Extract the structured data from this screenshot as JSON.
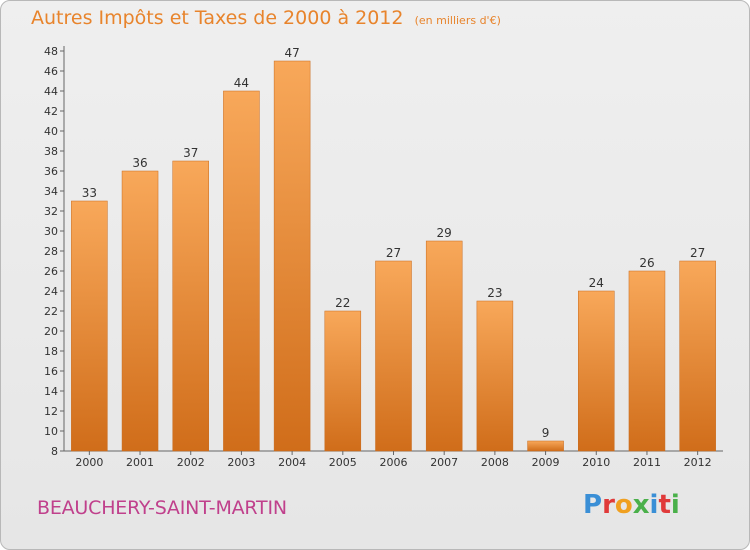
{
  "header": {
    "title": "Autres Impôts et Taxes de 2000 à 2012",
    "subtitle": "(en milliers d'€)"
  },
  "footer": {
    "location": "BEAUCHERY-SAINT-MARTIN",
    "logo": "Proxiti"
  },
  "colors": {
    "title": "#e8842c",
    "location": "#c0408c",
    "bar_top": "#f8a85a",
    "bar_bottom": "#d06d1a",
    "logo_letters": [
      "#3a8fd6",
      "#e03a3a",
      "#f0a020",
      "#4ab04a",
      "#3a8fd6",
      "#e03a3a",
      "#4ab04a"
    ]
  },
  "chart_data": {
    "type": "bar",
    "title": "Autres Impôts et Taxes de 2000 à 2012",
    "subtitle": "(en milliers d'€)",
    "categories": [
      "2000",
      "2001",
      "2002",
      "2003",
      "2004",
      "2005",
      "2006",
      "2007",
      "2008",
      "2009",
      "2010",
      "2011",
      "2012"
    ],
    "values": [
      33,
      36,
      37,
      44,
      47,
      22,
      27,
      29,
      23,
      9,
      24,
      26,
      27
    ],
    "ylim": [
      8,
      48
    ],
    "ytick_step": 2,
    "grid": false,
    "xlabel": "",
    "ylabel": ""
  }
}
